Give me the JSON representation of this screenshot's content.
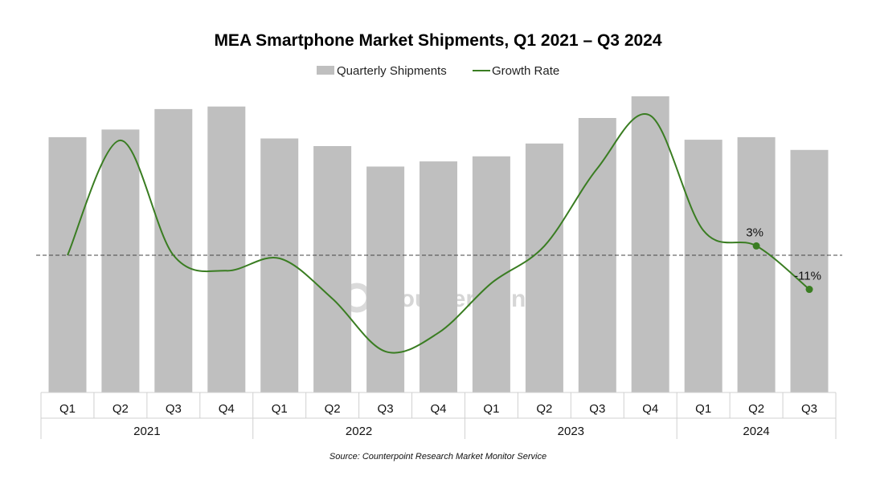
{
  "chart_data": {
    "type": "bar",
    "title": "MEA Smartphone Market Shipments, Q1 2021 – Q3 2024",
    "categories": [
      "Q1",
      "Q2",
      "Q3",
      "Q4",
      "Q1",
      "Q2",
      "Q3",
      "Q4",
      "Q1",
      "Q2",
      "Q3",
      "Q4",
      "Q1",
      "Q2",
      "Q3"
    ],
    "groups": [
      {
        "label": "2021",
        "count": 4
      },
      {
        "label": "2022",
        "count": 4
      },
      {
        "label": "2023",
        "count": 4
      },
      {
        "label": "2024",
        "count": 3
      }
    ],
    "series": [
      {
        "name": "Quarterly Shipments",
        "type": "bar",
        "color": "#bfbfbf",
        "values": [
          100,
          103,
          111,
          112,
          99.5,
          96.5,
          88.5,
          90.5,
          92.5,
          97.5,
          107.5,
          116,
          99,
          100,
          95
        ]
      },
      {
        "name": "Growth Rate",
        "type": "line",
        "color": "#3a7d22",
        "values": [
          0,
          37,
          0,
          -5,
          -1,
          -14,
          -31,
          -25,
          -9,
          3,
          28,
          45,
          8,
          3,
          -11
        ]
      }
    ],
    "bar_ylim": [
      0,
      120
    ],
    "line_ylim": [
      -45,
      50
    ],
    "reference_line": 0,
    "data_labels": [
      {
        "index": 13,
        "text": "3%"
      },
      {
        "index": 14,
        "text": "-11%"
      }
    ],
    "legend": {
      "position": "top-center"
    }
  },
  "watermark": "Counterpoint",
  "source": "Source: Counterpoint Research Market Monitor Service"
}
